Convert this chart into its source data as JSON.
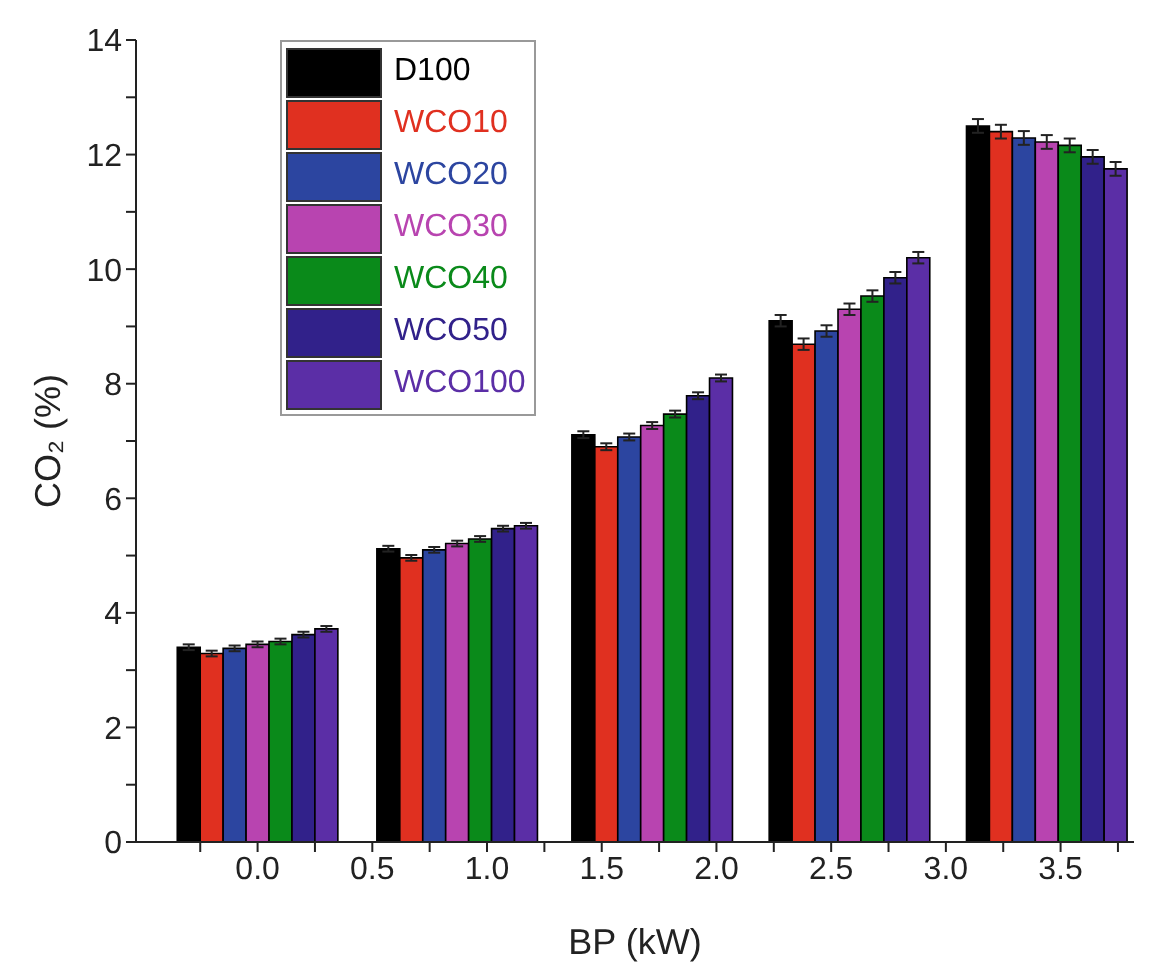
{
  "chart_data": {
    "type": "bar",
    "xlabel": "BP (kW)",
    "ylabel": "CO₂ (%)",
    "xlim": [
      -0.53,
      3.82
    ],
    "ylim": [
      0,
      14
    ],
    "xticks": [
      {
        "value": -0.25,
        "label": null
      },
      {
        "value": 0,
        "label": "0.0"
      },
      {
        "value": 0.25,
        "label": null
      },
      {
        "value": 0.5,
        "label": "0.5"
      },
      {
        "value": 0.75,
        "label": null
      },
      {
        "value": 1,
        "label": "1.0"
      },
      {
        "value": 1.25,
        "label": null
      },
      {
        "value": 1.5,
        "label": "1.5"
      },
      {
        "value": 1.75,
        "label": null
      },
      {
        "value": 2,
        "label": "2.0"
      },
      {
        "value": 2.25,
        "label": null
      },
      {
        "value": 2.5,
        "label": "2.5"
      },
      {
        "value": 2.75,
        "label": null
      },
      {
        "value": 3,
        "label": "3.0"
      },
      {
        "value": 3.25,
        "label": null
      },
      {
        "value": 3.5,
        "label": "3.5"
      },
      {
        "value": 3.75,
        "label": null
      }
    ],
    "yticks": [
      0,
      {
        "value": 1,
        "label": null
      },
      2,
      {
        "value": 3,
        "label": null
      },
      4,
      {
        "value": 5,
        "label": null
      },
      6,
      {
        "value": 7,
        "label": null
      },
      8,
      {
        "value": 9,
        "label": null
      },
      10,
      {
        "value": 11,
        "label": null
      },
      12,
      {
        "value": 13,
        "label": null
      },
      14
    ],
    "legend": "top left",
    "series": [
      {
        "name": "D100",
        "color": "#000000",
        "x": [
          -0.3,
          0.57,
          1.42,
          2.28,
          3.14
        ],
        "values": [
          3.4,
          5.12,
          7.11,
          9.1,
          12.5
        ],
        "errors": [
          0.05,
          0.05,
          0.06,
          0.1,
          0.12
        ]
      },
      {
        "name": "WCO10",
        "color": "#e03020",
        "x": [
          -0.2,
          0.67,
          1.52,
          2.38,
          3.24
        ],
        "values": [
          3.29,
          4.96,
          6.9,
          8.69,
          12.4
        ],
        "errors": [
          0.05,
          0.05,
          0.06,
          0.1,
          0.12
        ]
      },
      {
        "name": "WCO20",
        "color": "#2c45a0",
        "x": [
          -0.1,
          0.77,
          1.62,
          2.48,
          3.34
        ],
        "values": [
          3.38,
          5.1,
          7.07,
          8.92,
          12.29
        ],
        "errors": [
          0.05,
          0.05,
          0.06,
          0.1,
          0.12
        ]
      },
      {
        "name": "WCO30",
        "color": "#b844b0",
        "x": [
          0.0,
          0.87,
          1.72,
          2.58,
          3.44
        ],
        "values": [
          3.45,
          5.21,
          7.27,
          9.3,
          12.22
        ],
        "errors": [
          0.05,
          0.05,
          0.06,
          0.1,
          0.12
        ]
      },
      {
        "name": "WCO40",
        "color": "#0a8a1a",
        "x": [
          0.1,
          0.97,
          1.82,
          2.68,
          3.54
        ],
        "values": [
          3.5,
          5.29,
          7.47,
          9.53,
          12.16
        ],
        "errors": [
          0.05,
          0.05,
          0.06,
          0.1,
          0.12
        ]
      },
      {
        "name": "WCO50",
        "color": "#31218a",
        "x": [
          0.2,
          1.07,
          1.92,
          2.78,
          3.64
        ],
        "values": [
          3.62,
          5.47,
          7.79,
          9.85,
          11.96
        ],
        "errors": [
          0.05,
          0.05,
          0.06,
          0.1,
          0.12
        ]
      },
      {
        "name": "WCO100",
        "color": "#5b2ea6",
        "x": [
          0.3,
          1.17,
          2.02,
          2.88,
          3.74
        ],
        "values": [
          3.72,
          5.52,
          8.1,
          10.2,
          11.75
        ],
        "errors": [
          0.05,
          0.05,
          0.06,
          0.1,
          0.12
        ]
      }
    ]
  }
}
